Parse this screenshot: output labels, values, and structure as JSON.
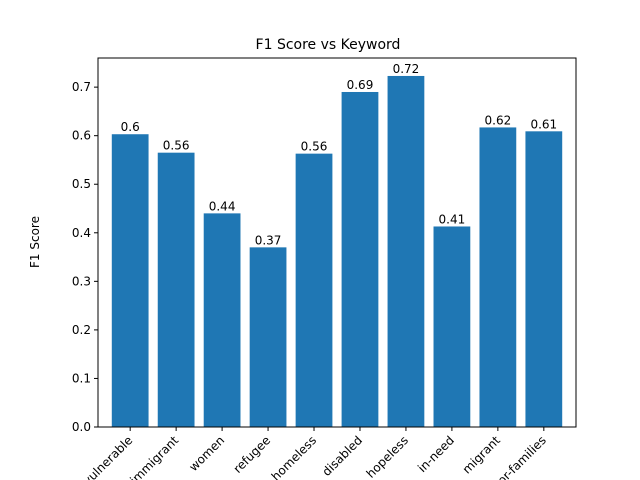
{
  "chart_data": {
    "type": "bar",
    "title": "F1 Score vs Keyword",
    "xlabel": "",
    "ylabel": "F1 Score",
    "categories": [
      "vulnerable",
      "immigrant",
      "women",
      "refugee",
      "homeless",
      "disabled",
      "hopeless",
      "in-need",
      "migrant",
      "poor-families"
    ],
    "values": [
      0.603,
      0.565,
      0.44,
      0.37,
      0.563,
      0.69,
      0.723,
      0.413,
      0.617,
      0.609
    ],
    "data_labels": [
      "0.6",
      "0.56",
      "0.44",
      "0.37",
      "0.56",
      "0.69",
      "0.72",
      "0.41",
      "0.62",
      "0.61"
    ],
    "ylim": [
      0,
      0.76
    ],
    "yticks": [
      0.0,
      0.1,
      0.2,
      0.3,
      0.4,
      0.5,
      0.6,
      0.7
    ],
    "ytick_labels": [
      "0.0",
      "0.1",
      "0.2",
      "0.3",
      "0.4",
      "0.5",
      "0.6",
      "0.7"
    ],
    "grid": false,
    "bar_color": "#1f77b4"
  }
}
